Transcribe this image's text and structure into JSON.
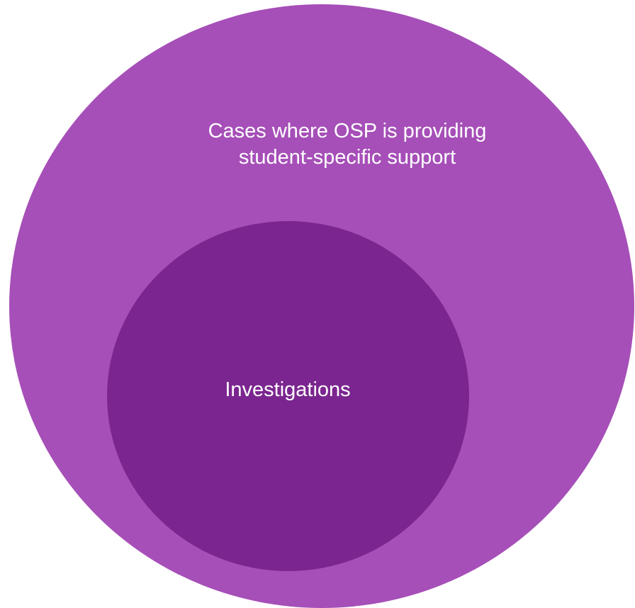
{
  "diagram": {
    "outer_set": {
      "label_line1": "Cases where OSP is providing",
      "label_line2": "student-specific support",
      "color": "#a64fb8"
    },
    "inner_set": {
      "label": "Investigations",
      "color": "#7b2690"
    },
    "text_color": "#ffffff"
  }
}
